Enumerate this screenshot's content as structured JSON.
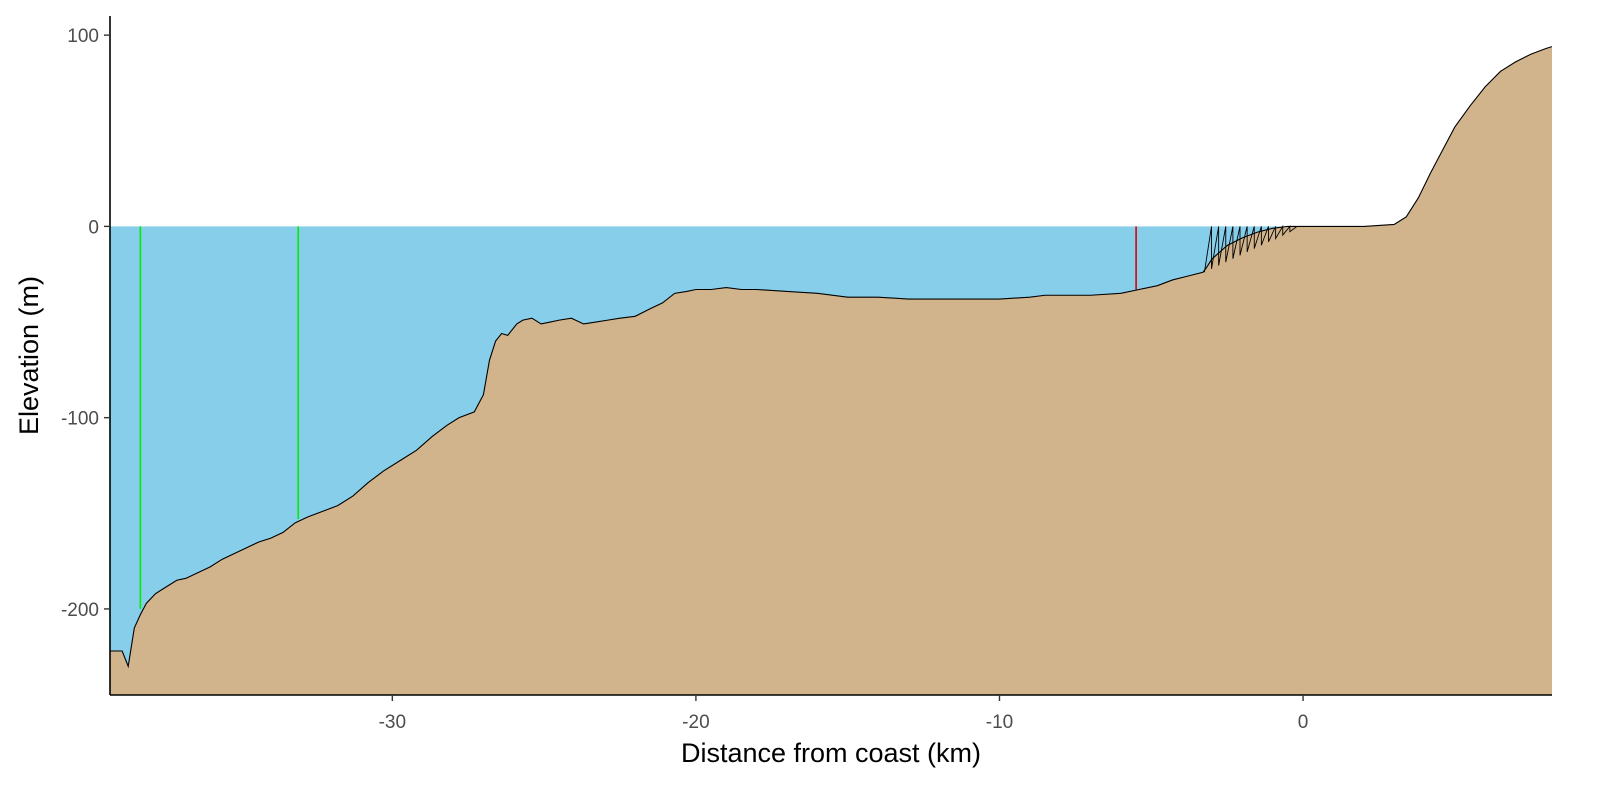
{
  "chart_data": {
    "type": "area",
    "title": "",
    "xlabel": "Distance from coast (km)",
    "ylabel": "Elevation (m)",
    "xlim": [
      -39.3,
      8.2
    ],
    "ylim": [
      -245,
      110
    ],
    "x_ticks": [
      -30,
      -20,
      -10,
      0
    ],
    "x_tick_labels": [
      "-30",
      "-20",
      "-10",
      "0"
    ],
    "y_ticks": [
      -200,
      -100,
      0,
      100
    ],
    "y_tick_labels": [
      "-200",
      "-100",
      "0",
      "100"
    ],
    "grid": false,
    "legend": "none",
    "colors": {
      "water": "#87CEEB",
      "terrain": "#D2B48C",
      "outline": "#000000",
      "green_marker": "#00EE00",
      "red_marker": "#DD0000"
    },
    "water_level": 0,
    "terrain_profile": {
      "x": [
        -39.3,
        -38.9,
        -38.7,
        -38.5,
        -38.3,
        -38.1,
        -37.8,
        -37.5,
        -37.1,
        -36.8,
        -36.4,
        -36.0,
        -35.6,
        -35.2,
        -34.8,
        -34.4,
        -34.0,
        -33.6,
        -33.2,
        -32.8,
        -32.3,
        -31.8,
        -31.3,
        -30.8,
        -30.3,
        -29.7,
        -29.2,
        -28.7,
        -28.2,
        -27.8,
        -27.3,
        -27.0,
        -26.8,
        -26.6,
        -26.4,
        -26.2,
        -25.9,
        -25.7,
        -25.4,
        -25.1,
        -24.8,
        -24.5,
        -24.1,
        -23.7,
        -23.3,
        -22.9,
        -22.5,
        -22.0,
        -21.5,
        -21.1,
        -20.7,
        -20.3,
        -20.0,
        -19.5,
        -19.0,
        -18.5,
        -18.0,
        -17.0,
        -16.0,
        -15.0,
        -14.0,
        -13.0,
        -12.0,
        -11.0,
        -10.0,
        -9.0,
        -8.5,
        -8.0,
        -7.0,
        -6.0,
        -5.4,
        -4.8,
        -4.3,
        -3.8,
        -3.3,
        -3.2,
        -3.0,
        -2.5,
        -2.0,
        -1.5,
        -1.0,
        -0.5,
        0.0,
        0.5,
        1.0,
        2.0,
        3.0,
        3.4,
        3.8,
        4.2,
        4.6,
        5.0,
        5.5,
        6.0,
        6.5,
        7.0,
        7.5,
        8.0,
        8.2
      ],
      "y": [
        -222,
        -222,
        -230,
        -210,
        -203,
        -197,
        -192,
        -189,
        -185,
        -184,
        -181,
        -178,
        -174,
        -171,
        -168,
        -165,
        -163,
        -160,
        -155,
        -152,
        -149,
        -146,
        -141,
        -134,
        -128,
        -122,
        -117,
        -110,
        -104,
        -100,
        -97,
        -88,
        -70,
        -60,
        -56,
        -57,
        -51,
        -49,
        -48,
        -51,
        -50,
        -49,
        -48,
        -51,
        -50,
        -49,
        -48,
        -47,
        -43,
        -40,
        -35,
        -34,
        -33,
        -33,
        -32,
        -33,
        -33,
        -34,
        -35,
        -37,
        -37,
        -38,
        -38,
        -38,
        -38,
        -37,
        -36,
        -36,
        -36,
        -35,
        -33,
        -31,
        -28,
        -26,
        -24,
        -22,
        -17,
        -10,
        -6,
        -3,
        -1,
        0,
        0,
        0,
        0,
        0,
        1,
        5,
        15,
        28,
        40,
        52,
        63,
        73,
        81,
        86,
        90,
        93,
        94
      ]
    },
    "vertical_markers": [
      {
        "x": -38.3,
        "y_bottom": -200,
        "color": "green"
      },
      {
        "x": -33.1,
        "y_bottom": -153,
        "color": "green"
      },
      {
        "x": -5.5,
        "y_bottom": -33,
        "color": "red"
      }
    ]
  }
}
